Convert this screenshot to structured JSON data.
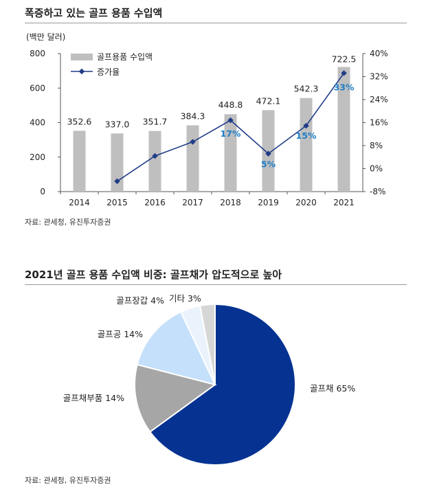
{
  "chart1": {
    "title": "폭증하고 있는 골프 용품 수입액",
    "unit": "(백만 달러)",
    "source": "자료: 관세청, 유진투자증권"
  },
  "chart2": {
    "title": "2021년 골프 용품 수입액 비중: 골프채가 압도적으로 높아",
    "source": "자료: 관세청, 유진투자증권"
  },
  "chart_data": [
    {
      "type": "bar",
      "title": "폭증하고 있는 골프 용품 수입액",
      "ylabel": "(백만 달러)",
      "categories": [
        "2014",
        "2015",
        "2016",
        "2017",
        "2018",
        "2019",
        "2020",
        "2021"
      ],
      "ylim": [
        0,
        800
      ],
      "yticks": [
        "0",
        "200",
        "400",
        "600",
        "800"
      ],
      "y2lim": [
        -8,
        40
      ],
      "y2ticks": [
        "-8%",
        "0%",
        "8%",
        "16%",
        "24%",
        "32%",
        "40%"
      ],
      "legend_position": "top-left",
      "grid": false,
      "series": [
        {
          "name": "골프용품 수입액",
          "type": "bar",
          "axis": "left",
          "color": "#bfbfbf",
          "values": [
            352.6,
            337.0,
            351.7,
            384.3,
            448.8,
            472.1,
            542.3,
            722.5
          ],
          "labels": [
            "352.6",
            "337.0",
            "351.7",
            "384.3",
            "448.8",
            "472.1",
            "542.3",
            "722.5"
          ]
        },
        {
          "name": "증가율",
          "type": "line",
          "axis": "right",
          "color": "#1f3c88",
          "values": [
            null,
            -4.4,
            4.4,
            9.3,
            16.8,
            5.2,
            14.9,
            33.2
          ],
          "annotations": [
            {
              "index": 4,
              "label": "17%"
            },
            {
              "index": 5,
              "label": "5%"
            },
            {
              "index": 6,
              "label": "15%"
            },
            {
              "index": 7,
              "label": "33%"
            }
          ],
          "annotation_color": "#1f7fc8"
        }
      ]
    },
    {
      "type": "pie",
      "title": "2021년 골프 용품 수입액 비중: 골프채가 압도적으로 높아",
      "slices": [
        {
          "label": "골프채 65%",
          "value": 65,
          "color": "#063392"
        },
        {
          "label": "골프채부품 14%",
          "value": 14,
          "color": "#a6a6a6"
        },
        {
          "label": "골프공 14%",
          "value": 14,
          "color": "#c4e0fa"
        },
        {
          "label": "골프장갑 4%",
          "value": 4,
          "color": "#eaf3fc"
        },
        {
          "label": "기타 3%",
          "value": 3,
          "color": "#d6d6d6"
        }
      ]
    }
  ]
}
